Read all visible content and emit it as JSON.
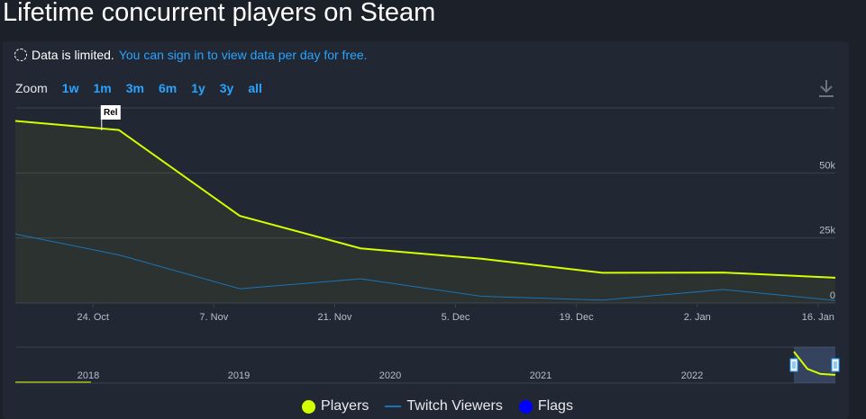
{
  "title": "Lifetime concurrent players on Steam",
  "notice": {
    "limited_text": "Data is limited.",
    "signin_text": "You can sign in to view data per day for free."
  },
  "zoom": {
    "label": "Zoom",
    "options": [
      "1w",
      "1m",
      "3m",
      "6m",
      "1y",
      "3y",
      "all"
    ]
  },
  "icons": {
    "download": "download-icon",
    "notice": "dashed-circle-icon"
  },
  "flag_label": "Rel",
  "colors": {
    "players": "#d4ff00",
    "twitch": "#1b74b8",
    "flags": "#0000ff",
    "link": "#29a3ff"
  },
  "legend": [
    {
      "label": "Players",
      "symbol": "dot",
      "color": "#d4ff00"
    },
    {
      "label": "Twitch Viewers",
      "symbol": "line",
      "color": "#1b74b8"
    },
    {
      "label": "Flags",
      "symbol": "dot",
      "color": "#0000ff"
    }
  ],
  "chart_data": {
    "type": "line",
    "title": "Lifetime concurrent players on Steam",
    "x_ticks": [
      "24. Oct",
      "7. Nov",
      "21. Nov",
      "5. Dec",
      "19. Dec",
      "2. Jan",
      "16. Jan"
    ],
    "y_ticks": [
      "0",
      "25k",
      "50k"
    ],
    "ylim": [
      0,
      75000
    ],
    "grid": true,
    "legend_position": "bottom-center",
    "series": [
      {
        "name": "Players",
        "points": [
          [
            "2017-10-15",
            70000
          ],
          [
            "2017-10-27",
            66500
          ],
          [
            "2017-11-10",
            33500
          ],
          [
            "2017-11-24",
            21000
          ],
          [
            "2017-12-08",
            17000
          ],
          [
            "2017-12-22",
            11600
          ],
          [
            "2018-01-05",
            11700
          ],
          [
            "2018-01-18",
            9700
          ]
        ]
      },
      {
        "name": "Twitch Viewers",
        "points": [
          [
            "2017-10-15",
            26500
          ],
          [
            "2017-10-27",
            18500
          ],
          [
            "2017-11-10",
            5500
          ],
          [
            "2017-11-24",
            9300
          ],
          [
            "2017-12-08",
            2600
          ],
          [
            "2017-12-22",
            1100
          ],
          [
            "2018-01-05",
            5200
          ],
          [
            "2018-01-18",
            1000
          ]
        ]
      }
    ],
    "flags": [
      {
        "date": "2017-10-25",
        "label": "Rel"
      }
    ],
    "navigator": {
      "year_labels": [
        "2018",
        "2019",
        "2020",
        "2021",
        "2022"
      ],
      "series": [
        [
          "2017-10-15",
          70000
        ],
        [
          "2017-11-15",
          25000
        ],
        [
          "2017-12-15",
          12000
        ],
        [
          "2018-01-18",
          9700
        ]
      ]
    }
  }
}
